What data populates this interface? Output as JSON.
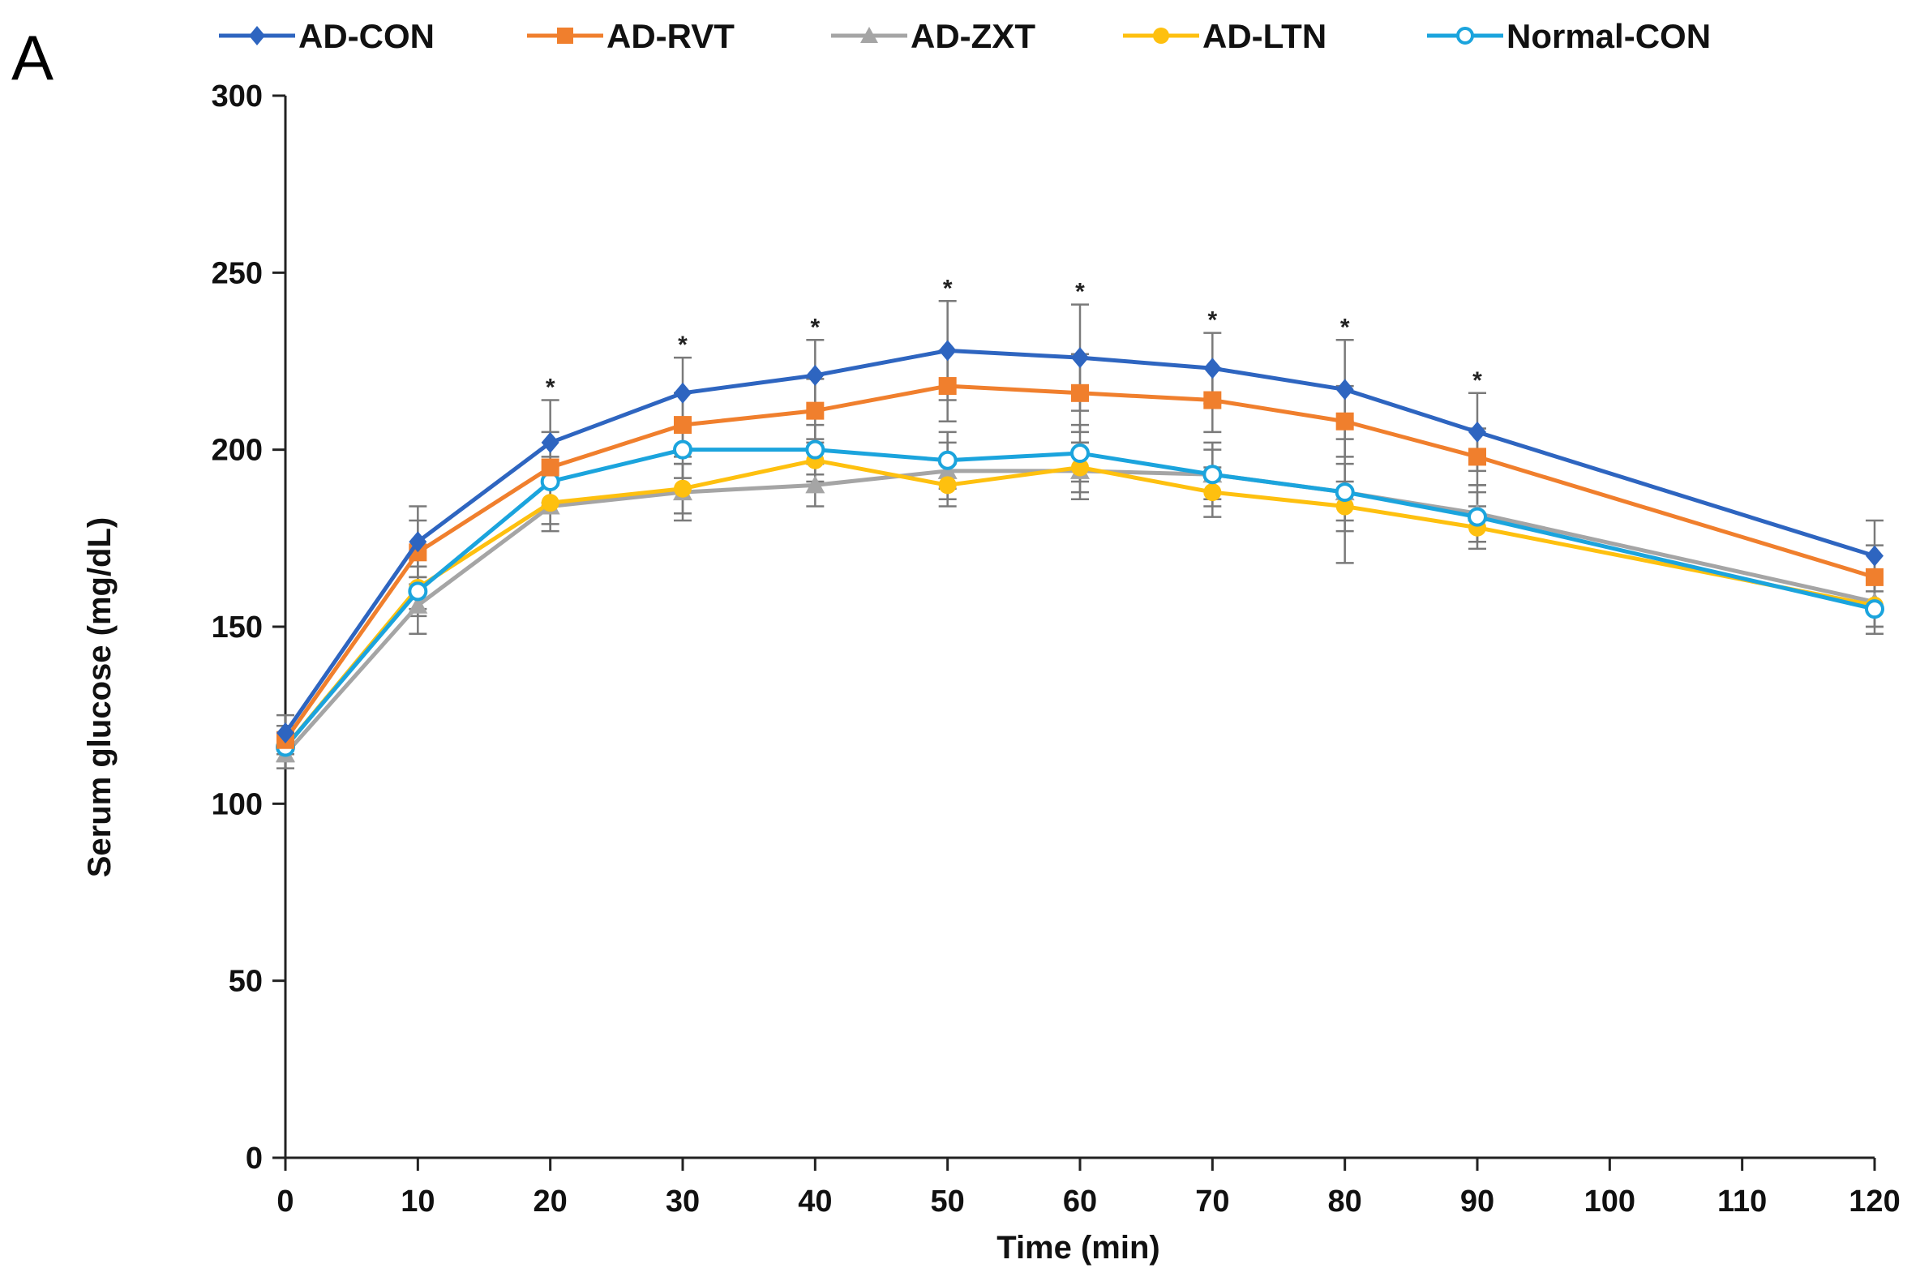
{
  "panel_label": "A",
  "chart_data": {
    "type": "line",
    "title": "",
    "xlabel": "Time (min)",
    "ylabel": "Serum glucose (mg/dL)",
    "xlim": [
      0,
      120
    ],
    "ylim": [
      0,
      300
    ],
    "x_ticks": [
      0,
      10,
      20,
      30,
      40,
      50,
      60,
      70,
      80,
      90,
      100,
      110,
      120
    ],
    "y_ticks": [
      0,
      50,
      100,
      150,
      200,
      250,
      300
    ],
    "grid": false,
    "legend_position": "top",
    "x": [
      0,
      10,
      20,
      30,
      40,
      50,
      60,
      70,
      80,
      90,
      120
    ],
    "significance_marks": [
      {
        "x": 20,
        "label": "*"
      },
      {
        "x": 30,
        "label": "*"
      },
      {
        "x": 40,
        "label": "*"
      },
      {
        "x": 50,
        "label": "*"
      },
      {
        "x": 60,
        "label": "*"
      },
      {
        "x": 70,
        "label": "*"
      },
      {
        "x": 80,
        "label": "*"
      },
      {
        "x": 90,
        "label": "*"
      }
    ],
    "series": [
      {
        "name": "AD-CON",
        "color": "#2e65c0",
        "marker": "diamond",
        "values": [
          120,
          174,
          202,
          216,
          221,
          228,
          226,
          223,
          217,
          205,
          170
        ],
        "errors": [
          5,
          10,
          12,
          10,
          10,
          14,
          15,
          10,
          14,
          11,
          10
        ]
      },
      {
        "name": "AD-RVT",
        "color": "#f07f2d",
        "marker": "square",
        "values": [
          118,
          171,
          195,
          207,
          211,
          218,
          216,
          214,
          208,
          198,
          164
        ],
        "errors": [
          4,
          9,
          10,
          9,
          9,
          10,
          11,
          9,
          10,
          8,
          9
        ]
      },
      {
        "name": "AD-ZXT",
        "color": "#a5a5a5",
        "marker": "triangle",
        "values": [
          114,
          156,
          184,
          188,
          190,
          194,
          194,
          193,
          188,
          182,
          157
        ],
        "errors": [
          4,
          8,
          7,
          8,
          6,
          8,
          8,
          9,
          20,
          8,
          7
        ]
      },
      {
        "name": "AD-LTN",
        "color": "#fec00f",
        "marker": "circle",
        "values": [
          116,
          161,
          185,
          189,
          197,
          190,
          195,
          188,
          184,
          178,
          156
        ],
        "errors": [
          4,
          6,
          6,
          7,
          6,
          6,
          7,
          7,
          7,
          6,
          6
        ]
      },
      {
        "name": "Normal-CON",
        "color": "#1ba4dd",
        "marker": "open-circle",
        "values": [
          116,
          160,
          191,
          200,
          200,
          197,
          199,
          193,
          188,
          181,
          155
        ],
        "errors": [
          4,
          7,
          7,
          8,
          7,
          8,
          8,
          7,
          8,
          7,
          7
        ]
      }
    ]
  }
}
